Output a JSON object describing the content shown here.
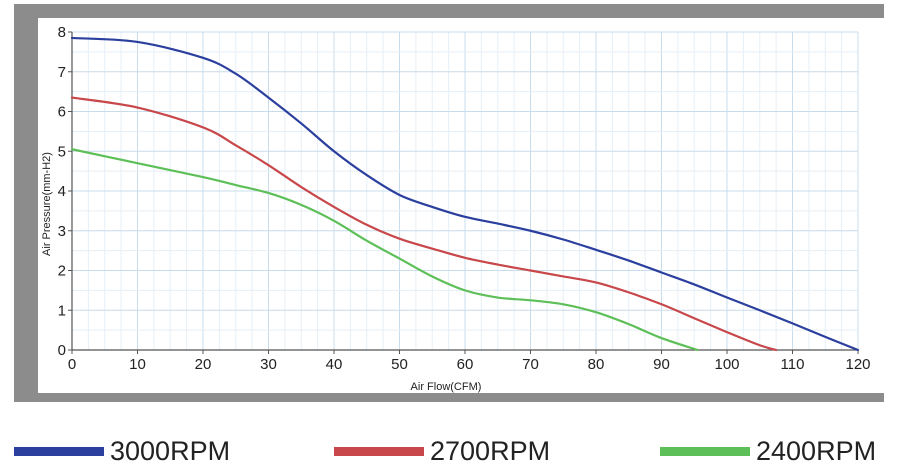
{
  "chart_data": {
    "type": "line",
    "xlabel": "Air Flow(CFM)",
    "ylabel": "Air Pressure(mm-H2)",
    "xlim": [
      0,
      120
    ],
    "ylim": [
      0,
      8
    ],
    "x_ticks": [
      "0",
      "10",
      "20",
      "30",
      "40",
      "50",
      "60",
      "70",
      "80",
      "90",
      "100",
      "110",
      "120"
    ],
    "y_ticks": [
      "0",
      "1",
      "2",
      "3",
      "4",
      "5",
      "6",
      "7",
      "8"
    ],
    "grid": true,
    "legend_position": "bottom",
    "series": [
      {
        "name": "3000RPM",
        "color": "#2b3f9e",
        "x": [
          0,
          10,
          20,
          25,
          30,
          35,
          40,
          45,
          50,
          55,
          60,
          65,
          70,
          75,
          80,
          85,
          90,
          95,
          100,
          105,
          110,
          115,
          120
        ],
        "y": [
          7.85,
          7.75,
          7.35,
          6.95,
          6.35,
          5.7,
          5.0,
          4.4,
          3.9,
          3.6,
          3.35,
          3.18,
          3.0,
          2.78,
          2.52,
          2.25,
          1.95,
          1.65,
          1.32,
          1.0,
          0.67,
          0.33,
          0.0
        ]
      },
      {
        "name": "2700RPM",
        "color": "#c8474a",
        "x": [
          0,
          10,
          20,
          25,
          30,
          35,
          40,
          45,
          50,
          55,
          60,
          65,
          70,
          75,
          80,
          85,
          90,
          95,
          100,
          105,
          107.5
        ],
        "y": [
          6.35,
          6.1,
          5.6,
          5.15,
          4.65,
          4.1,
          3.6,
          3.15,
          2.8,
          2.55,
          2.32,
          2.15,
          2.0,
          1.85,
          1.7,
          1.45,
          1.15,
          0.8,
          0.45,
          0.12,
          0.0
        ]
      },
      {
        "name": "2400RPM",
        "color": "#5dbf57",
        "x": [
          0,
          10,
          20,
          25,
          30,
          35,
          40,
          45,
          50,
          55,
          60,
          65,
          70,
          75,
          80,
          85,
          90,
          95.5
        ],
        "y": [
          5.05,
          4.7,
          4.35,
          4.15,
          3.95,
          3.65,
          3.25,
          2.75,
          2.3,
          1.85,
          1.5,
          1.32,
          1.25,
          1.15,
          0.95,
          0.65,
          0.3,
          0.0
        ]
      }
    ]
  }
}
